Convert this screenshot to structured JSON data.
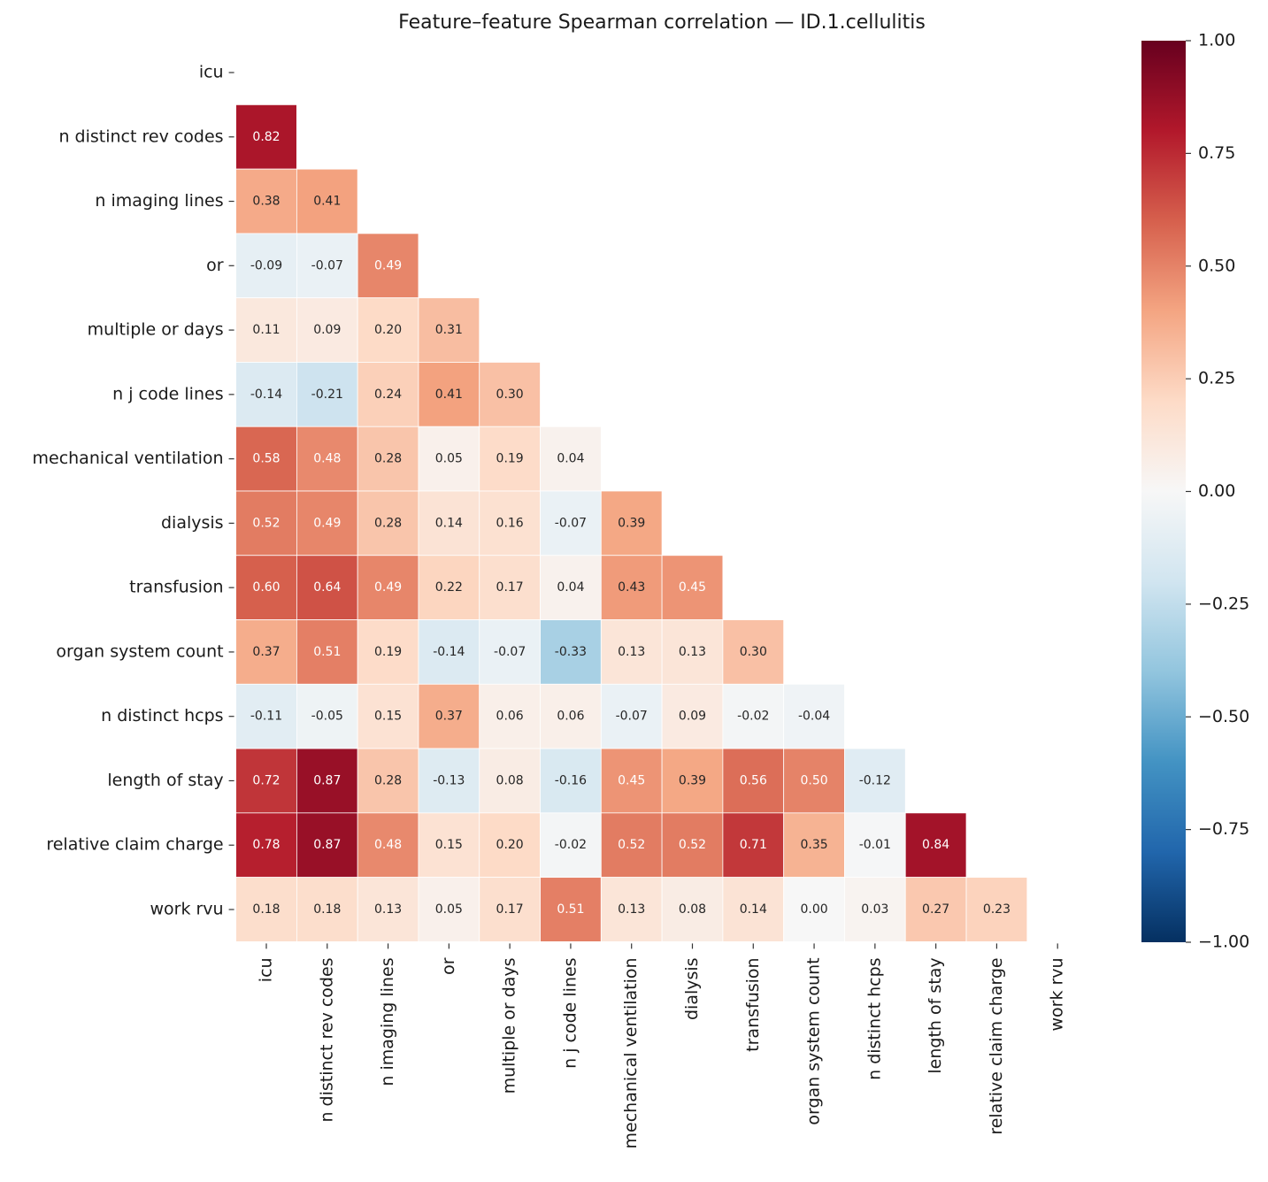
{
  "chart_data": {
    "type": "heatmap",
    "title": "Feature–feature Spearman correlation — ID.1.cellulitis",
    "categories": [
      "icu",
      "n distinct rev codes",
      "n imaging lines",
      "or",
      "multiple or days",
      "n j code lines",
      "mechanical ventilation",
      "dialysis",
      "transfusion",
      "organ system count",
      "n distinct hcps",
      "length of stay",
      "relative claim charge",
      "work rvu"
    ],
    "values": [
      [],
      [
        0.82
      ],
      [
        0.38,
        0.41
      ],
      [
        -0.09,
        -0.07,
        0.49
      ],
      [
        0.11,
        0.09,
        0.2,
        0.31
      ],
      [
        -0.14,
        -0.21,
        0.24,
        0.41,
        0.3
      ],
      [
        0.58,
        0.48,
        0.28,
        0.05,
        0.19,
        0.04
      ],
      [
        0.52,
        0.49,
        0.28,
        0.14,
        0.16,
        -0.07,
        0.39
      ],
      [
        0.6,
        0.64,
        0.49,
        0.22,
        0.17,
        0.04,
        0.43,
        0.45
      ],
      [
        0.37,
        0.51,
        0.19,
        -0.14,
        -0.07,
        -0.33,
        0.13,
        0.13,
        0.3
      ],
      [
        -0.11,
        -0.05,
        0.15,
        0.37,
        0.06,
        0.06,
        -0.07,
        0.09,
        -0.02,
        -0.04
      ],
      [
        0.72,
        0.87,
        0.28,
        -0.13,
        0.08,
        -0.16,
        0.45,
        0.39,
        0.56,
        0.5,
        -0.12
      ],
      [
        0.78,
        0.87,
        0.48,
        0.15,
        0.2,
        -0.02,
        0.52,
        0.52,
        0.71,
        0.35,
        -0.01,
        0.84
      ],
      [
        0.18,
        0.18,
        0.13,
        0.05,
        0.17,
        0.51,
        0.13,
        0.08,
        0.14,
        0.0,
        0.03,
        0.27,
        0.23
      ]
    ],
    "value_labels": [
      [],
      [
        "0.82"
      ],
      [
        "0.38",
        "0.41"
      ],
      [
        "-0.09",
        "-0.07",
        "0.49"
      ],
      [
        "0.11",
        "0.09",
        "0.20",
        "0.31"
      ],
      [
        "-0.14",
        "-0.21",
        "0.24",
        "0.41",
        "0.30"
      ],
      [
        "0.58",
        "0.48",
        "0.28",
        "0.05",
        "0.19",
        "0.04"
      ],
      [
        "0.52",
        "0.49",
        "0.28",
        "0.14",
        "0.16",
        "-0.07",
        "0.39"
      ],
      [
        "0.60",
        "0.64",
        "0.49",
        "0.22",
        "0.17",
        "0.04",
        "0.43",
        "0.45"
      ],
      [
        "0.37",
        "0.51",
        "0.19",
        "-0.14",
        "-0.07",
        "-0.33",
        "0.13",
        "0.13",
        "0.30"
      ],
      [
        "-0.11",
        "-0.05",
        "0.15",
        "0.37",
        "0.06",
        "0.06",
        "-0.07",
        "0.09",
        "-0.02",
        "-0.04"
      ],
      [
        "0.72",
        "0.87",
        "0.28",
        "-0.13",
        "0.08",
        "-0.16",
        "0.45",
        "0.39",
        "0.56",
        "0.50",
        "-0.12"
      ],
      [
        "0.78",
        "0.87",
        "0.48",
        "0.15",
        "0.20",
        "-0.02",
        "0.52",
        "0.52",
        "0.71",
        "0.35",
        "-0.01",
        "0.84"
      ],
      [
        "0.18",
        "0.18",
        "0.13",
        "0.05",
        "0.17",
        "0.51",
        "0.13",
        "0.08",
        "0.14",
        "0.00",
        "0.03",
        "0.27",
        "0.23"
      ]
    ],
    "colormap": "RdBu_r",
    "clim": [
      -1,
      1
    ],
    "cticks": [
      {
        "value": 1,
        "label": "1.00"
      },
      0.75,
      {
        "value": 0.5,
        "label": "0.50"
      },
      0.25,
      {
        "value": 0,
        "label": "0.00"
      },
      {
        "value": -0.25,
        "label": "−0.25"
      },
      {
        "value": -0.5,
        "label": "−0.50"
      },
      {
        "value": -0.75,
        "label": "−0.75"
      },
      {
        "value": -1,
        "label": "−1.00"
      }
    ]
  }
}
